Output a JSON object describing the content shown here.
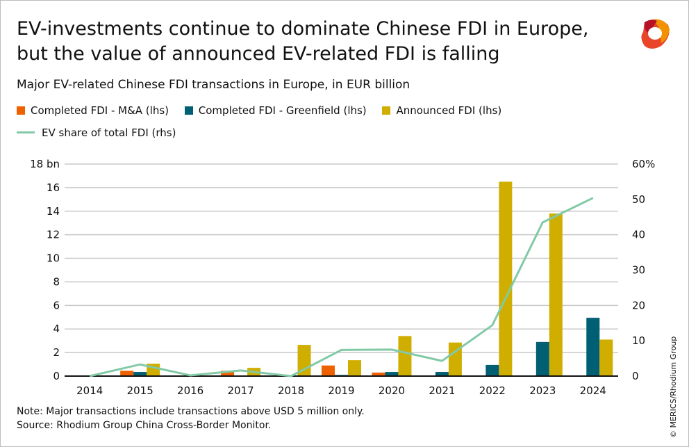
{
  "title_line1": "EV-investments continue to dominate Chinese FDI in Europe,",
  "title_line2": "but the value of announced EV-related FDI is falling",
  "subtitle": "Major EV-related Chinese FDI transactions in Europe, in EUR billion",
  "note": "Note: Major transactions include transactions above USD 5 million only.",
  "source": "Source: Rhodium Group China Cross-Border Monitor.",
  "copyright": "© MERICS/Rhodium Group",
  "logo_text": "MERICS",
  "colors": {
    "ma": "#ee6100",
    "greenfield": "#005f73",
    "announced": "#cfae00",
    "share": "#82c9a6"
  },
  "chart_data": {
    "type": "bar+line",
    "categories": [
      "2014",
      "2015",
      "2016",
      "2017",
      "2018",
      "2019",
      "2020",
      "2021",
      "2022",
      "2023",
      "2024"
    ],
    "series": [
      {
        "name": "Completed FDI - M&A (lhs)",
        "type": "bar",
        "axis": "left",
        "values": [
          0,
          0.45,
          0,
          0.45,
          0,
          0.9,
          0.3,
          0,
          0,
          0,
          0
        ]
      },
      {
        "name": "Completed FDI - Greenfield (lhs)",
        "type": "bar",
        "axis": "left",
        "values": [
          0,
          0.35,
          0,
          0.05,
          0,
          0.1,
          0.35,
          0.35,
          0.95,
          2.9,
          4.95
        ]
      },
      {
        "name": "Announced FDI (lhs)",
        "type": "bar",
        "axis": "left",
        "values": [
          0,
          1.05,
          0,
          0.7,
          2.65,
          1.35,
          3.4,
          2.85,
          16.5,
          13.8,
          3.1
        ]
      },
      {
        "name": "EV share of total FDI (rhs)",
        "type": "line",
        "axis": "right",
        "values": [
          0,
          3.3,
          0.2,
          1.6,
          0,
          7.4,
          7.5,
          4.3,
          14.4,
          43.5,
          50.4
        ]
      }
    ],
    "left_axis": {
      "ylim": [
        0,
        18
      ],
      "ticks": [
        "0",
        "2",
        "4",
        "6",
        "8",
        "10",
        "12",
        "14",
        "16",
        "18 bn"
      ]
    },
    "right_axis": {
      "ylim": [
        0,
        60
      ],
      "ticks": [
        "0",
        "10",
        "20",
        "30",
        "40",
        "50",
        "60%"
      ]
    },
    "grid": true,
    "legend": "top-left"
  }
}
